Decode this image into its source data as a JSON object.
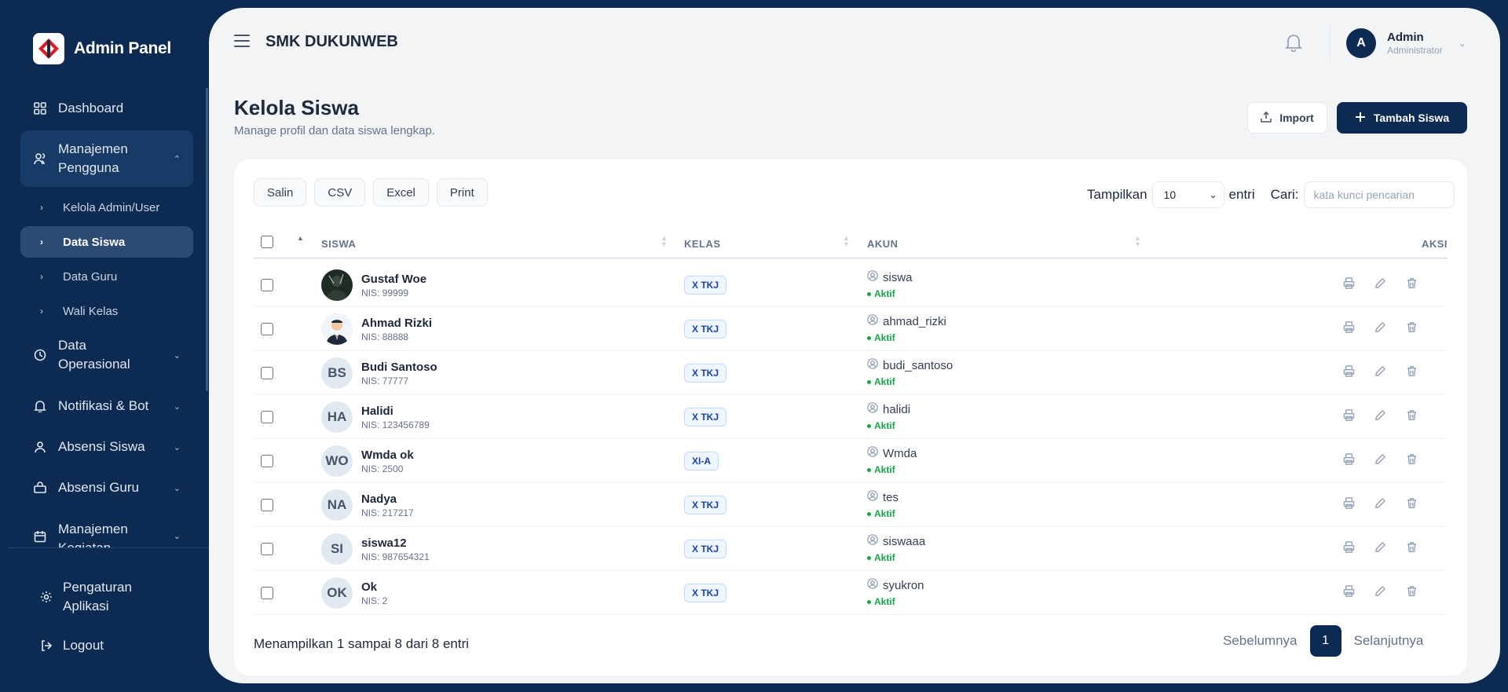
{
  "app": {
    "brand": "Admin Panel",
    "school": "SMK DUKUNWEB"
  },
  "sidebar": {
    "dashboard": "Dashboard",
    "manajemen_pengguna": "Manajemen Pengguna",
    "sub_items": [
      "Kelola Admin/User",
      "Data Siswa",
      "Data Guru",
      "Wali Kelas"
    ],
    "data_operasional": "Data Operasional",
    "notifikasi": "Notifikasi & Bot",
    "absensi_siswa": "Absensi Siswa",
    "absensi_guru": "Absensi Guru",
    "manajemen_kegiatan": "Manajemen Kegiatan",
    "pengaturan": "Pengaturan Aplikasi",
    "logout": "Logout"
  },
  "user": {
    "initial": "A",
    "name": "Admin",
    "role": "Administrator"
  },
  "page": {
    "title": "Kelola Siswa",
    "subtitle": "Manage profil dan data siswa lengkap.",
    "import_label": "Import",
    "add_label": "Tambah Siswa"
  },
  "toolbar": {
    "copy": "Salin",
    "csv": "CSV",
    "excel": "Excel",
    "print": "Print",
    "show_label": "Tampilkan",
    "page_size": "10",
    "entries_label": "entri",
    "search_label": "Cari:",
    "search_placeholder": "kata kunci pencarian"
  },
  "table": {
    "headers": {
      "siswa": "SISWA",
      "kelas": "KELAS",
      "akun": "AKUN",
      "aksi": "AKSI"
    },
    "rows": [
      {
        "name": "Gustaf Woe",
        "nis": "NIS: 99999",
        "initials": "",
        "photo": "photo-dark",
        "kelas": "X TKJ",
        "akun": "siswa",
        "status": "Aktif"
      },
      {
        "name": "Ahmad Rizki",
        "nis": "NIS: 88888",
        "initials": "",
        "photo": "photo-suit",
        "kelas": "X TKJ",
        "akun": "ahmad_rizki",
        "status": "Aktif"
      },
      {
        "name": "Budi Santoso",
        "nis": "NIS: 77777",
        "initials": "BS",
        "photo": "",
        "kelas": "X TKJ",
        "akun": "budi_santoso",
        "status": "Aktif"
      },
      {
        "name": "Halidi",
        "nis": "NIS: 123456789",
        "initials": "HA",
        "photo": "",
        "kelas": "X TKJ",
        "akun": "halidi",
        "status": "Aktif"
      },
      {
        "name": "Wmda ok",
        "nis": "NIS: 2500",
        "initials": "WO",
        "photo": "",
        "kelas": "XI-A",
        "akun": "Wmda",
        "status": "Aktif"
      },
      {
        "name": "Nadya",
        "nis": "NIS: 217217",
        "initials": "NA",
        "photo": "",
        "kelas": "X TKJ",
        "akun": "tes",
        "status": "Aktif"
      },
      {
        "name": "siswa12",
        "nis": "NIS: 987654321",
        "initials": "SI",
        "photo": "",
        "kelas": "X TKJ",
        "akun": "siswaaa",
        "status": "Aktif"
      },
      {
        "name": "Ok",
        "nis": "NIS: 2",
        "initials": "OK",
        "photo": "",
        "kelas": "X TKJ",
        "akun": "syukron",
        "status": "Aktif"
      }
    ]
  },
  "footer": {
    "info": "Menampilkan 1 sampai 8 dari 8 entri",
    "prev": "Sebelumnya",
    "page": "1",
    "next": "Selanjutnya"
  },
  "colors": {
    "navy": "#0c2a52",
    "active_sub": "#2d4a74",
    "status_green": "#16a34a",
    "badge_blue": "#1e40af"
  }
}
